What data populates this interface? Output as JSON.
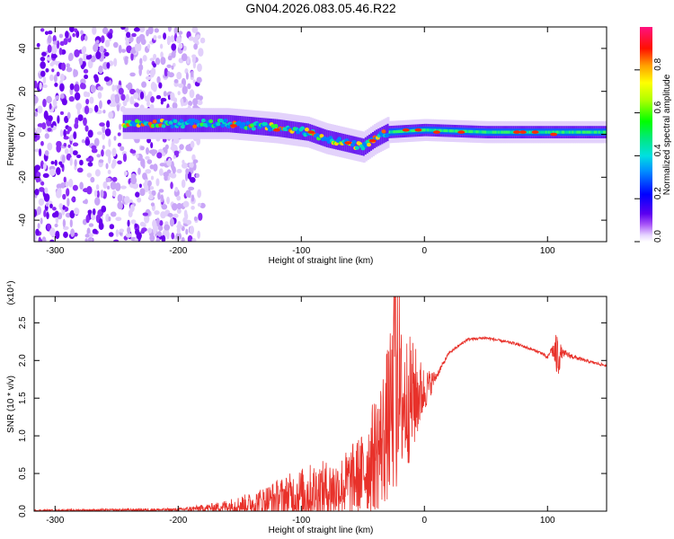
{
  "title": "GN04.2026.083.05.46.R22",
  "colors": {
    "line": "#e8312a",
    "axis": "#000000",
    "background": "#ffffff"
  },
  "chart_data": [
    {
      "type": "heatmap",
      "name": "spectrogram",
      "xlabel": "Height of straight line (km)",
      "ylabel": "Frequency (Hz)",
      "xlim": [
        -317,
        148
      ],
      "ylim": [
        -50,
        50
      ],
      "x_ticks": [
        -300,
        -200,
        -100,
        0,
        100
      ],
      "y_ticks": [
        -40,
        -20,
        0,
        20,
        40
      ],
      "colorbar": {
        "label": "Normalized spectral amplitude",
        "range": [
          0,
          1
        ],
        "ticks": [
          "0.0",
          "0.2",
          "0.4",
          "0.6",
          "0.8"
        ]
      },
      "noise_region_x": [
        -317,
        -180
      ],
      "center_track": [
        {
          "x": -245,
          "f": 5
        },
        {
          "x": -200,
          "f": 5
        },
        {
          "x": -160,
          "f": 5
        },
        {
          "x": -120,
          "f": 3
        },
        {
          "x": -95,
          "f": 1
        },
        {
          "x": -80,
          "f": -2
        },
        {
          "x": -65,
          "f": -4
        },
        {
          "x": -50,
          "f": -6
        },
        {
          "x": -40,
          "f": -2
        },
        {
          "x": -30,
          "f": 1
        },
        {
          "x": 0,
          "f": 2
        },
        {
          "x": 50,
          "f": 1
        },
        {
          "x": 100,
          "f": 1
        },
        {
          "x": 148,
          "f": 1
        }
      ]
    },
    {
      "type": "line",
      "name": "snr",
      "xlabel": "Height of straight line (km)",
      "ylabel": "SNR (10 * v/v)",
      "scale_label": "(x10⁴)",
      "xlim": [
        -317,
        148
      ],
      "ylim": [
        0,
        2.85
      ],
      "x_ticks": [
        -300,
        -200,
        -100,
        0,
        100
      ],
      "y_ticks": [
        0,
        0.5,
        1.0,
        1.5,
        2.0,
        2.5
      ],
      "y_tick_labels": [
        "0.0",
        "0.5",
        "1.0",
        "1.5",
        "2.0",
        "2.5"
      ],
      "envelope": [
        {
          "x": -317,
          "mean": 0.01,
          "amp": 0.01
        },
        {
          "x": -200,
          "mean": 0.02,
          "amp": 0.02
        },
        {
          "x": -170,
          "mean": 0.05,
          "amp": 0.06
        },
        {
          "x": -140,
          "mean": 0.1,
          "amp": 0.15
        },
        {
          "x": -110,
          "mean": 0.2,
          "amp": 0.3
        },
        {
          "x": -90,
          "mean": 0.25,
          "amp": 0.4
        },
        {
          "x": -70,
          "mean": 0.3,
          "amp": 0.4
        },
        {
          "x": -50,
          "mean": 0.5,
          "amp": 0.55
        },
        {
          "x": -35,
          "mean": 0.9,
          "amp": 0.9
        },
        {
          "x": -25,
          "mean": 1.4,
          "amp": 1.2
        },
        {
          "x": -10,
          "mean": 1.5,
          "amp": 0.8
        },
        {
          "x": 0,
          "mean": 1.6,
          "amp": 0.3
        },
        {
          "x": 10,
          "mean": 1.8,
          "amp": 0.05
        },
        {
          "x": 20,
          "mean": 2.1,
          "amp": 0.02
        },
        {
          "x": 35,
          "mean": 2.28,
          "amp": 0.02
        },
        {
          "x": 50,
          "mean": 2.3,
          "amp": 0.02
        },
        {
          "x": 75,
          "mean": 2.22,
          "amp": 0.02
        },
        {
          "x": 95,
          "mean": 2.1,
          "amp": 0.02
        },
        {
          "x": 100,
          "mean": 2.03,
          "amp": 0.03
        },
        {
          "x": 103,
          "mean": 2.15,
          "amp": 0.03
        },
        {
          "x": 108,
          "mean": 2.05,
          "amp": 0.35
        },
        {
          "x": 112,
          "mean": 2.1,
          "amp": 0.05
        },
        {
          "x": 130,
          "mean": 2.0,
          "amp": 0.02
        },
        {
          "x": 148,
          "mean": 1.93,
          "amp": 0.02
        }
      ],
      "peak": {
        "x": -22,
        "y": 2.85
      }
    }
  ]
}
